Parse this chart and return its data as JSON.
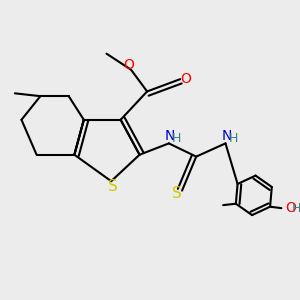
{
  "background_color": "#ececec",
  "colors": {
    "C": "#000000",
    "N": "#0000cc",
    "O": "#ff0000",
    "S": "#cccc00",
    "H": "#408080",
    "bond": "#000000"
  },
  "figsize": [
    3.0,
    3.0
  ],
  "dpi": 100
}
